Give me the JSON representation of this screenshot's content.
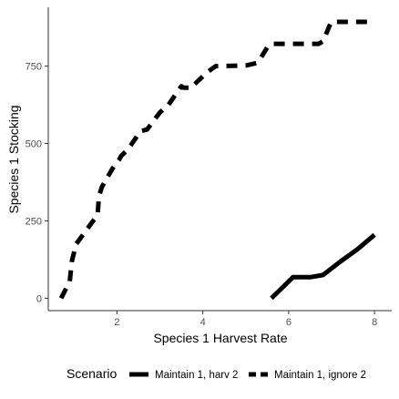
{
  "chart_data": {
    "type": "line",
    "title": "",
    "xlabel": "Species 1 Harvest Rate",
    "ylabel": "Species 1 Stocking",
    "xlim": [
      0.4,
      8.4
    ],
    "ylim": [
      -40,
      940
    ],
    "xticks": [
      2,
      4,
      6,
      8
    ],
    "yticks": [
      0,
      250,
      500,
      750
    ],
    "grid": false,
    "legend": {
      "title": "Scenario",
      "placement": "bottom"
    },
    "series": [
      {
        "name": "Maintain 1, harv 2",
        "linestyle": "solid",
        "color": "#000000",
        "x": [
          5.6,
          6.1,
          6.5,
          6.8,
          7.2,
          7.6,
          8.0
        ],
        "y": [
          0,
          68,
          68,
          75,
          118,
          158,
          205
        ]
      },
      {
        "name": "Maintain 1, ignore 2",
        "linestyle": "dashed",
        "color": "#000000",
        "x": [
          0.7,
          0.9,
          0.95,
          1.05,
          1.55,
          1.58,
          1.65,
          1.9,
          2.05,
          2.1,
          2.25,
          2.4,
          2.55,
          2.7,
          3.0,
          3.2,
          3.5,
          3.55,
          3.75,
          3.8,
          4.1,
          4.3,
          5.0,
          5.25,
          5.3,
          5.5,
          5.6,
          6.3,
          6.7,
          6.8,
          6.95,
          7.0,
          8.0
        ],
        "y": [
          0,
          55,
          120,
          175,
          270,
          330,
          360,
          420,
          448,
          460,
          480,
          510,
          540,
          545,
          600,
          625,
          685,
          680,
          680,
          690,
          730,
          750,
          752,
          760,
          765,
          810,
          822,
          822,
          822,
          830,
          880,
          893,
          893
        ]
      }
    ]
  }
}
